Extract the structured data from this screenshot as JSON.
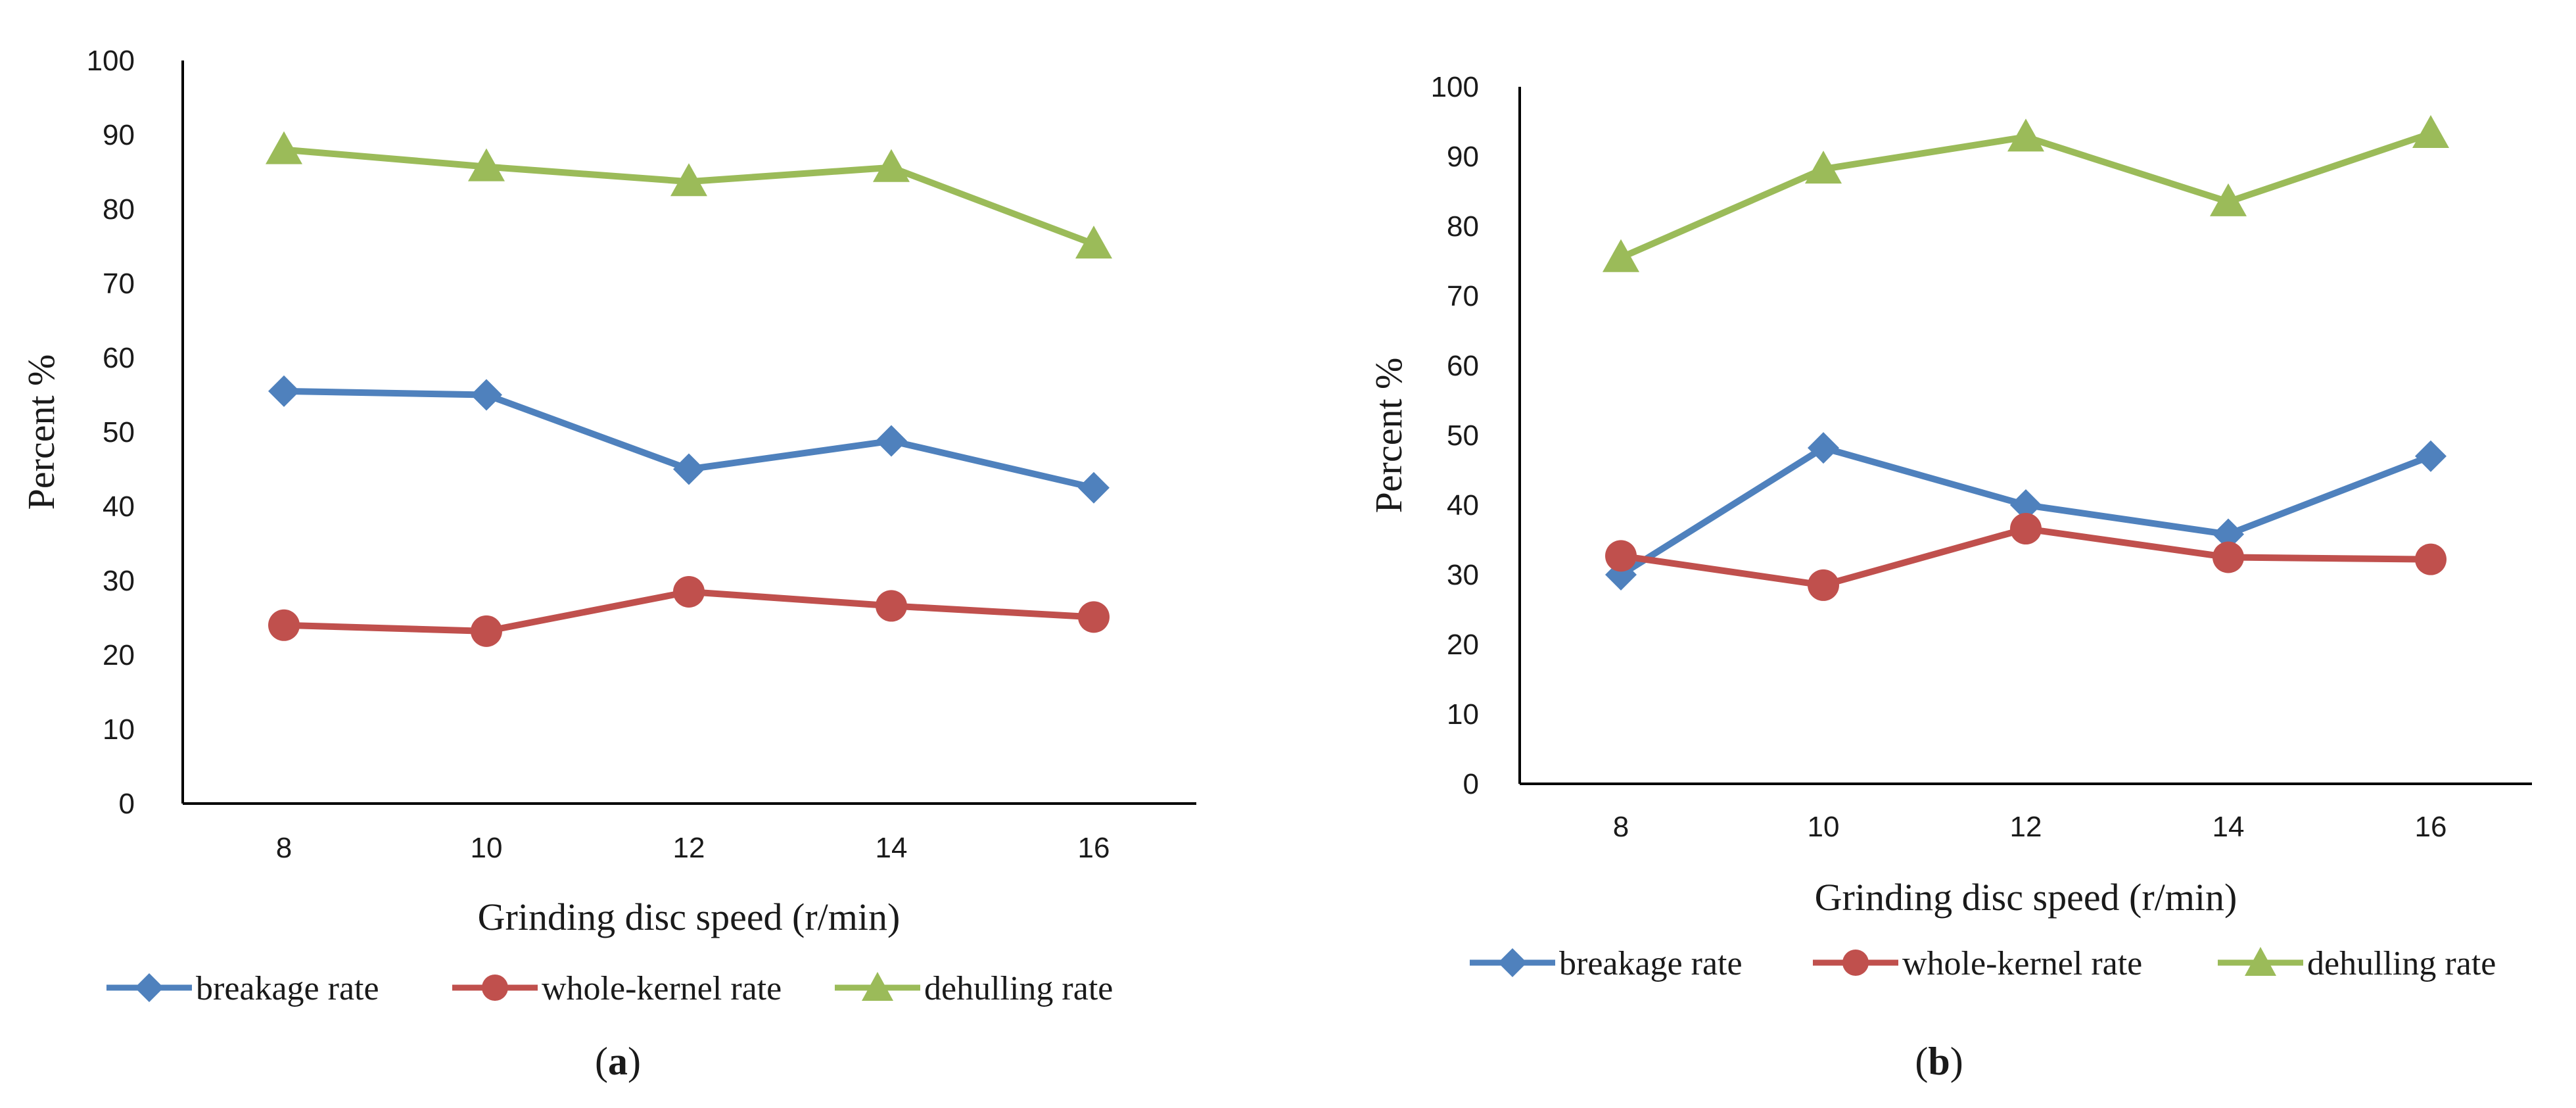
{
  "colors": {
    "breakage": "#4f81bd",
    "whole_kernel": "#c0504d",
    "dehulling": "#9bbb59",
    "axis": "#000000"
  },
  "chart_data": [
    {
      "type": "line",
      "caption": "a",
      "title": "",
      "xlabel": "Grinding disc speed (r/min)",
      "ylabel": "Percent %",
      "ylim": [
        0,
        100
      ],
      "yticks": [
        "0",
        "10",
        "20",
        "30",
        "40",
        "50",
        "60",
        "70",
        "80",
        "90",
        "100"
      ],
      "categories": [
        "8",
        "10",
        "12",
        "14",
        "16"
      ],
      "grid": false,
      "legend_position": "bottom",
      "series": [
        {
          "name": "breakage rate",
          "marker": "diamond",
          "color": "#4f81bd",
          "values": [
            55.5,
            55.0,
            45.0,
            48.8,
            42.5
          ]
        },
        {
          "name": "whole-kernel rate",
          "marker": "circle",
          "color": "#c0504d",
          "values": [
            24.0,
            23.2,
            28.5,
            26.6,
            25.1
          ]
        },
        {
          "name": "dehulling  rate",
          "marker": "triangle",
          "color": "#9bbb59",
          "values": [
            88.0,
            85.7,
            83.7,
            85.6,
            75.3
          ]
        }
      ]
    },
    {
      "type": "line",
      "caption": "b",
      "title": "",
      "xlabel": "Grinding disc speed (r/min)",
      "ylabel": "Percent %",
      "ylim": [
        0,
        100
      ],
      "yticks": [
        "0",
        "10",
        "20",
        "30",
        "40",
        "50",
        "60",
        "70",
        "80",
        "90",
        "100"
      ],
      "categories": [
        "8",
        "10",
        "12",
        "14",
        "16"
      ],
      "grid": false,
      "legend_position": "bottom",
      "series": [
        {
          "name": "breakage rate",
          "marker": "diamond",
          "color": "#4f81bd",
          "values": [
            30.0,
            48.2,
            40.0,
            35.8,
            47.0
          ]
        },
        {
          "name": "whole-kernel rate",
          "marker": "circle",
          "color": "#c0504d",
          "values": [
            32.7,
            28.5,
            36.6,
            32.5,
            32.2
          ]
        },
        {
          "name": "dehulling rate",
          "marker": "triangle",
          "color": "#9bbb59",
          "values": [
            75.5,
            88.2,
            92.8,
            83.5,
            93.3
          ]
        }
      ]
    }
  ]
}
